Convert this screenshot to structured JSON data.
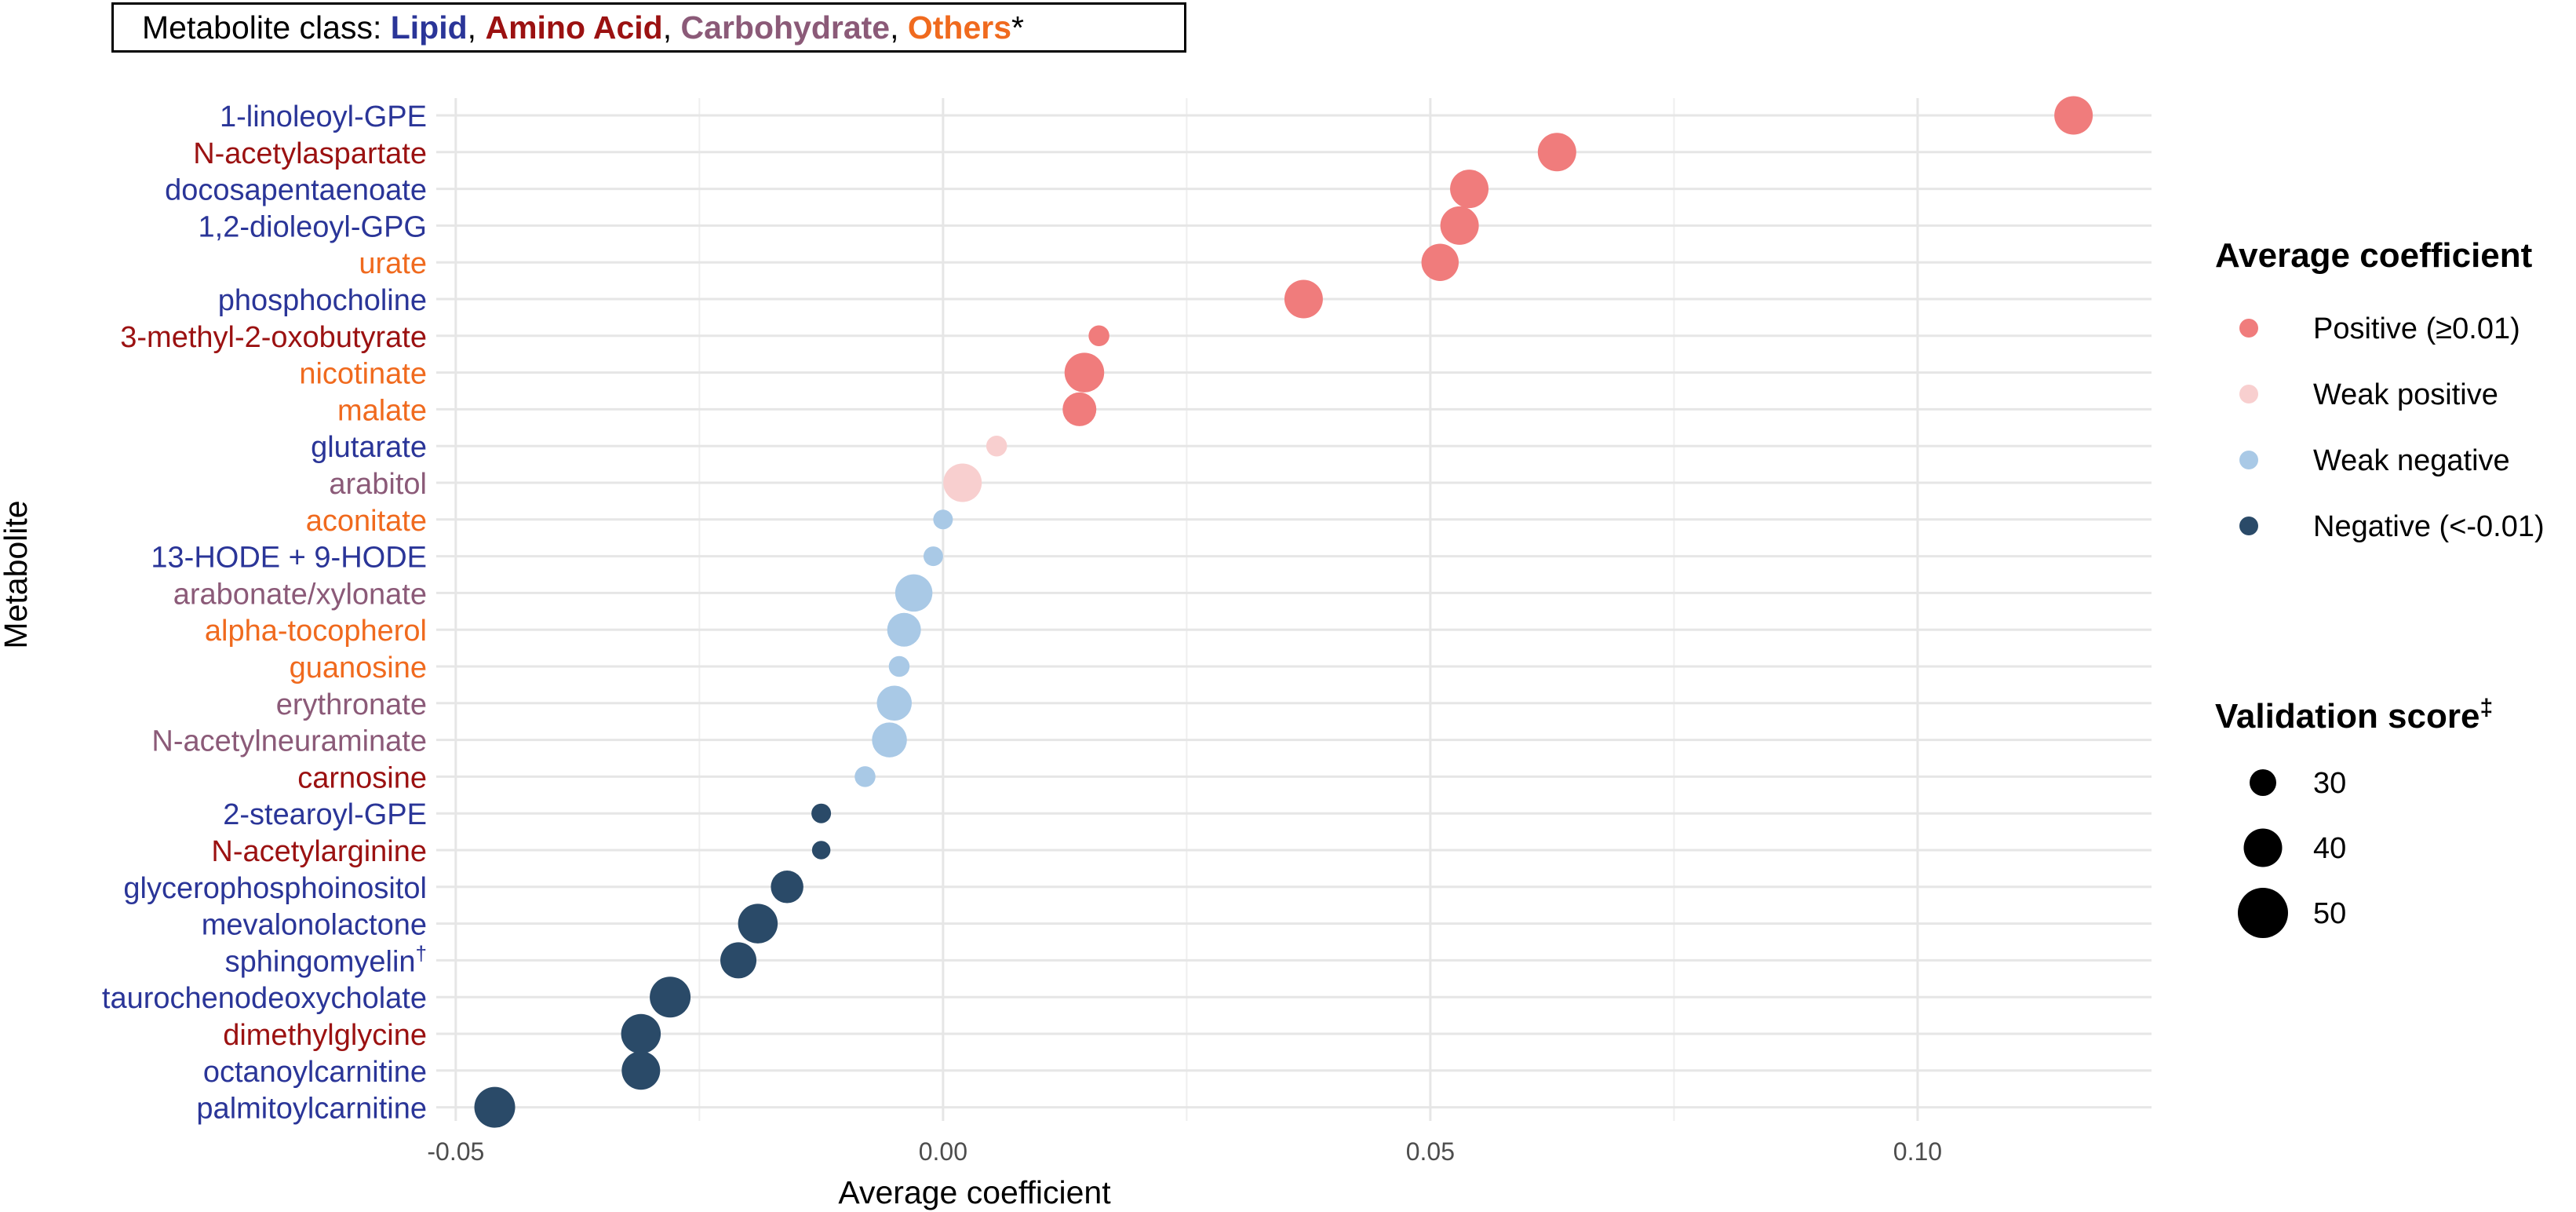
{
  "class_box": {
    "prefix": "Metabolite class: ",
    "classes": [
      {
        "label": "Lipid",
        "color": "#2A3598"
      },
      {
        "label": "Amino Acid",
        "color": "#9B1111"
      },
      {
        "label": "Carbohydrate",
        "color": "#8B5A78"
      },
      {
        "label": "Others",
        "color": "#F06A1E"
      }
    ],
    "separator": ", ",
    "suffix": "*"
  },
  "chart_data": {
    "type": "scatter",
    "xlabel": "Average coefficient",
    "ylabel": "Metabolite",
    "xlim": [
      -0.052,
      0.124
    ],
    "x_ticks": [
      -0.05,
      0.0,
      0.05,
      0.1
    ],
    "x_tick_labels": [
      "-0.05",
      "0.00",
      "0.05",
      "0.10"
    ],
    "grid": true,
    "legend_position": "right",
    "class_colors": {
      "Lipid": "#2A3598",
      "Amino Acid": "#9B1111",
      "Carbohydrate": "#8B5A78",
      "Others": "#F06A1E"
    },
    "coefficient_colors": {
      "Positive (≥0.01)": "#F07C7C",
      "Weak positive": "#F8CFCF",
      "Weak negative": "#A9C9E6",
      "Negative (<-0.01)": "#2A4A68"
    },
    "points": [
      {
        "metabolite": "1-linoleoyl-GPE",
        "class": "Lipid",
        "coef": 0.116,
        "score": 48,
        "group": "Positive (≥0.01)"
      },
      {
        "metabolite": "N-acetylaspartate",
        "class": "Amino Acid",
        "coef": 0.063,
        "score": 48,
        "group": "Positive (≥0.01)"
      },
      {
        "metabolite": "docosapentaenoate",
        "class": "Lipid",
        "coef": 0.054,
        "score": 48,
        "group": "Positive (≥0.01)"
      },
      {
        "metabolite": "1,2-dioleoyl-GPG",
        "class": "Lipid",
        "coef": 0.053,
        "score": 48,
        "group": "Positive (≥0.01)"
      },
      {
        "metabolite": "urate",
        "class": "Others",
        "coef": 0.051,
        "score": 47,
        "group": "Positive (≥0.01)"
      },
      {
        "metabolite": "phosphocholine",
        "class": "Lipid",
        "coef": 0.037,
        "score": 48,
        "group": "Positive (≥0.01)"
      },
      {
        "metabolite": "3-methyl-2-oxobutyrate",
        "class": "Amino Acid",
        "coef": 0.016,
        "score": 33,
        "group": "Positive (≥0.01)"
      },
      {
        "metabolite": "nicotinate",
        "class": "Others",
        "coef": 0.0145,
        "score": 49,
        "group": "Positive (≥0.01)"
      },
      {
        "metabolite": "malate",
        "class": "Others",
        "coef": 0.014,
        "score": 44,
        "group": "Positive (≥0.01)"
      },
      {
        "metabolite": "glutarate",
        "class": "Lipid",
        "coef": 0.0055,
        "score": 33,
        "group": "Weak positive"
      },
      {
        "metabolite": "arabitol",
        "class": "Carbohydrate",
        "coef": 0.002,
        "score": 48,
        "group": "Weak positive"
      },
      {
        "metabolite": "aconitate",
        "class": "Others",
        "coef": 0.0,
        "score": 32,
        "group": "Weak negative"
      },
      {
        "metabolite": "13-HODE + 9-HODE",
        "class": "Lipid",
        "coef": -0.001,
        "score": 32,
        "group": "Weak negative"
      },
      {
        "metabolite": "arabonate/xylonate",
        "class": "Carbohydrate",
        "coef": -0.003,
        "score": 47,
        "group": "Weak negative"
      },
      {
        "metabolite": "alpha-tocopherol",
        "class": "Others",
        "coef": -0.004,
        "score": 44,
        "group": "Weak negative"
      },
      {
        "metabolite": "guanosine",
        "class": "Others",
        "coef": -0.0045,
        "score": 33,
        "group": "Weak negative"
      },
      {
        "metabolite": "erythronate",
        "class": "Carbohydrate",
        "coef": -0.005,
        "score": 45,
        "group": "Weak negative"
      },
      {
        "metabolite": "N-acetylneuraminate",
        "class": "Carbohydrate",
        "coef": -0.0055,
        "score": 45,
        "group": "Weak negative"
      },
      {
        "metabolite": "carnosine",
        "class": "Amino Acid",
        "coef": -0.008,
        "score": 33,
        "group": "Weak negative"
      },
      {
        "metabolite": "2-stearoyl-GPE",
        "class": "Lipid",
        "coef": -0.0125,
        "score": 32,
        "group": "Negative (<-0.01)"
      },
      {
        "metabolite": "N-acetylarginine",
        "class": "Amino Acid",
        "coef": -0.0125,
        "score": 31,
        "group": "Negative (<-0.01)"
      },
      {
        "metabolite": "glycerophosphoinositol",
        "class": "Lipid",
        "coef": -0.016,
        "score": 43,
        "group": "Negative (<-0.01)"
      },
      {
        "metabolite": "mevalonolactone",
        "class": "Lipid",
        "coef": -0.019,
        "score": 49,
        "group": "Negative (<-0.01)"
      },
      {
        "metabolite": "sphingomyelin",
        "class": "Lipid",
        "coef": -0.021,
        "score": 46,
        "group": "Negative (<-0.01)",
        "superscript": "†"
      },
      {
        "metabolite": "taurochenodeoxycholate",
        "class": "Lipid",
        "coef": -0.028,
        "score": 50,
        "group": "Negative (<-0.01)"
      },
      {
        "metabolite": "dimethylglycine",
        "class": "Amino Acid",
        "coef": -0.031,
        "score": 49,
        "group": "Negative (<-0.01)"
      },
      {
        "metabolite": "octanoylcarnitine",
        "class": "Lipid",
        "coef": -0.031,
        "score": 48,
        "group": "Negative (<-0.01)"
      },
      {
        "metabolite": "palmitoylcarnitine",
        "class": "Lipid",
        "coef": -0.046,
        "score": 50,
        "group": "Negative (<-0.01)"
      }
    ],
    "legend_color": {
      "title": "Average coefficient",
      "entries": [
        {
          "label": "Positive (≥0.01)",
          "color": "#F07C7C"
        },
        {
          "label": "Weak positive",
          "color": "#F8CFCF"
        },
        {
          "label": "Weak negative",
          "color": "#A9C9E6"
        },
        {
          "label": "Negative (<-0.01)",
          "color": "#2A4A68"
        }
      ]
    },
    "legend_size": {
      "title": "Validation score",
      "title_superscript": "‡",
      "entries": [
        30,
        40,
        50
      ]
    }
  }
}
